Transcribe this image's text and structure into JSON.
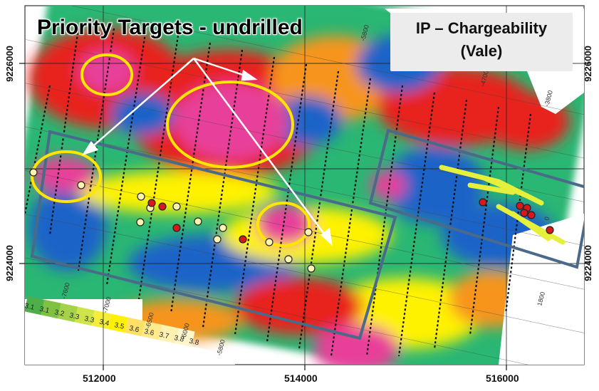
{
  "map": {
    "title": "Priority Targets - undrilled",
    "legend_line1": "IP – Chargeability",
    "legend_line2": "(Vale)",
    "x_ticks": [
      "512000",
      "514000",
      "516000"
    ],
    "y_ticks": [
      "9226000",
      "9224000"
    ],
    "scale_values": [
      "3.1",
      "3.1",
      "3.2",
      "3.3",
      "3.3",
      "3.4",
      "3.5",
      "3.6",
      "3.6",
      "3.7",
      "3.8",
      "3.8"
    ],
    "line_labels": [
      "-5800",
      "-5600",
      "-4700",
      "-3800",
      "-7600",
      "-7000",
      "-6500",
      "-6000",
      "-5800",
      "1800",
      "0"
    ],
    "colors": {
      "high": "#e8409a",
      "red": "#e8201c",
      "orange": "#f7941d",
      "yellow": "#fff200",
      "green": "#2bb673",
      "blue": "#1c64c8",
      "target_circle": "#ffe600",
      "survey_box": "#4a6a8a",
      "drill_red": "#d7191c",
      "drill_pale": "#fff3b0"
    }
  }
}
